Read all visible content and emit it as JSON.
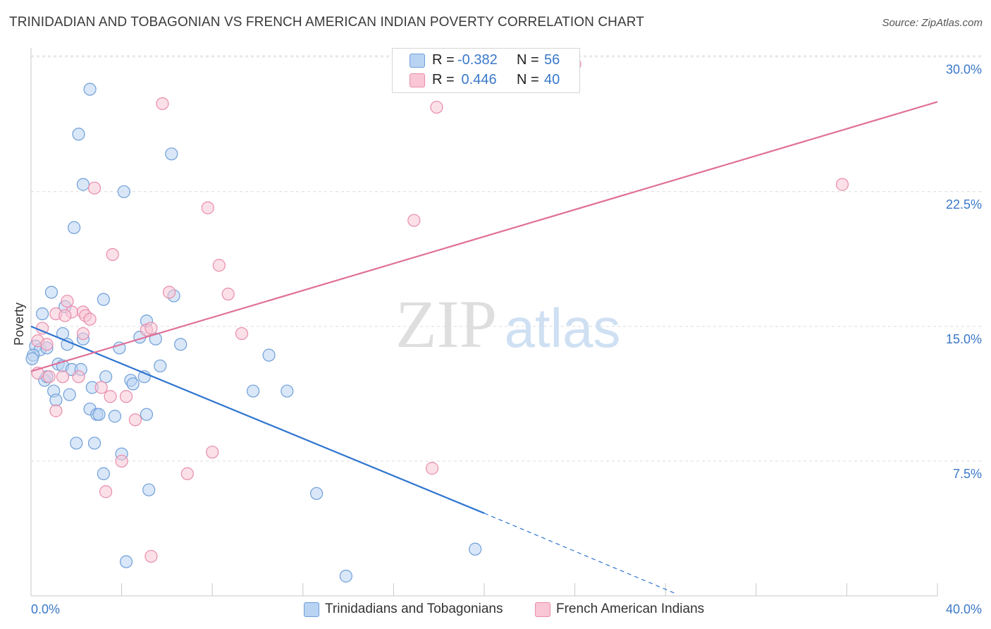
{
  "title": "TRINIDADIAN AND TOBAGONIAN VS FRENCH AMERICAN INDIAN POVERTY CORRELATION CHART",
  "source": "Source: ZipAtlas.com",
  "watermark": {
    "zip": "ZIP",
    "atlas": "atlas"
  },
  "legend": {
    "rows": [
      {
        "r_label": "R = ",
        "r_value": "-0.382",
        "n_label": "N = ",
        "n_value": "56"
      },
      {
        "r_label": "R = ",
        "r_value": " 0.446",
        "n_label": "N = ",
        "n_value": "40"
      }
    ]
  },
  "bottom_legend": [
    {
      "label": "Trinidadians and Tobagonians"
    },
    {
      "label": "French American Indians"
    }
  ],
  "colors": {
    "blue_fill": "#b9d3f3",
    "blue_stroke": "#6f9fd8",
    "blue_line": "#2e74d0",
    "pink_fill": "#f8c6d5",
    "pink_stroke": "#e98cab",
    "pink_line": "#e07099",
    "tick_label": "#3a78c9",
    "grid": "#dcdcdc"
  },
  "chart_data": {
    "type": "scatter",
    "title": "TRINIDADIAN AND TOBAGONIAN VS FRENCH AMERICAN INDIAN POVERTY CORRELATION CHART",
    "xlabel": "",
    "ylabel": "Poverty",
    "xlim": [
      0,
      40
    ],
    "ylim": [
      0,
      30.5
    ],
    "x_tick_labels": [
      "0.0%",
      "40.0%"
    ],
    "y_ticks": [
      7.5,
      15.0,
      22.5,
      30.0
    ],
    "y_tick_labels": [
      "7.5%",
      "15.0%",
      "22.5%",
      "30.0%"
    ],
    "grid": "horizontal dashed",
    "legend_position": "top-center",
    "series": [
      {
        "name": "Trinidadians and Tobagonians",
        "R": -0.382,
        "N": 56,
        "trend": {
          "x": [
            0,
            20
          ],
          "y": [
            15.0,
            4.6
          ],
          "dashed_extension_to": [
            28.5,
            0.1
          ]
        },
        "points": [
          [
            2.6,
            28.2
          ],
          [
            2.1,
            25.7
          ],
          [
            6.2,
            24.6
          ],
          [
            2.3,
            22.9
          ],
          [
            4.1,
            22.5
          ],
          [
            1.9,
            20.5
          ],
          [
            0.9,
            16.9
          ],
          [
            3.2,
            16.5
          ],
          [
            6.3,
            16.7
          ],
          [
            1.5,
            16.1
          ],
          [
            0.5,
            15.7
          ],
          [
            5.1,
            15.3
          ],
          [
            1.4,
            14.6
          ],
          [
            2.3,
            14.3
          ],
          [
            4.8,
            14.4
          ],
          [
            5.5,
            14.3
          ],
          [
            1.6,
            14.0
          ],
          [
            0.2,
            13.9
          ],
          [
            0.4,
            13.7
          ],
          [
            0.1,
            13.4
          ],
          [
            0.7,
            13.8
          ],
          [
            3.9,
            13.8
          ],
          [
            6.6,
            14.0
          ],
          [
            10.5,
            13.4
          ],
          [
            1.2,
            12.9
          ],
          [
            1.4,
            12.8
          ],
          [
            1.8,
            12.6
          ],
          [
            2.2,
            12.6
          ],
          [
            5.7,
            12.8
          ],
          [
            0.6,
            12.0
          ],
          [
            0.7,
            12.2
          ],
          [
            3.3,
            12.2
          ],
          [
            5.0,
            12.2
          ],
          [
            4.4,
            12.0
          ],
          [
            4.5,
            11.8
          ],
          [
            2.7,
            11.6
          ],
          [
            1.0,
            11.4
          ],
          [
            1.7,
            11.2
          ],
          [
            9.8,
            11.4
          ],
          [
            11.3,
            11.4
          ],
          [
            1.1,
            10.9
          ],
          [
            2.6,
            10.4
          ],
          [
            2.9,
            10.1
          ],
          [
            3.0,
            10.1
          ],
          [
            3.7,
            10.0
          ],
          [
            5.1,
            10.1
          ],
          [
            2.0,
            8.5
          ],
          [
            2.8,
            8.5
          ],
          [
            4.0,
            7.9
          ],
          [
            3.2,
            6.8
          ],
          [
            5.2,
            5.9
          ],
          [
            12.6,
            5.7
          ],
          [
            19.6,
            2.6
          ],
          [
            4.2,
            1.9
          ],
          [
            13.9,
            1.1
          ],
          [
            0.05,
            13.2
          ]
        ]
      },
      {
        "name": "French American Indians",
        "R": 0.446,
        "N": 40,
        "trend": {
          "x": [
            0,
            40
          ],
          "y": [
            12.5,
            27.5
          ]
        },
        "points": [
          [
            24.0,
            29.6
          ],
          [
            5.8,
            27.4
          ],
          [
            17.9,
            27.2
          ],
          [
            35.8,
            22.9
          ],
          [
            2.8,
            22.7
          ],
          [
            7.8,
            21.6
          ],
          [
            16.9,
            20.9
          ],
          [
            3.6,
            19.0
          ],
          [
            8.3,
            18.4
          ],
          [
            6.1,
            16.9
          ],
          [
            8.7,
            16.8
          ],
          [
            1.6,
            16.4
          ],
          [
            1.1,
            15.7
          ],
          [
            1.8,
            15.8
          ],
          [
            2.3,
            15.8
          ],
          [
            1.5,
            15.6
          ],
          [
            2.4,
            15.6
          ],
          [
            2.6,
            15.4
          ],
          [
            0.5,
            14.9
          ],
          [
            5.1,
            14.8
          ],
          [
            5.3,
            14.9
          ],
          [
            9.3,
            14.6
          ],
          [
            2.3,
            14.6
          ],
          [
            0.3,
            14.2
          ],
          [
            0.7,
            14.0
          ],
          [
            0.3,
            12.4
          ],
          [
            0.8,
            12.2
          ],
          [
            1.4,
            12.2
          ],
          [
            2.1,
            12.2
          ],
          [
            3.1,
            11.6
          ],
          [
            3.5,
            11.1
          ],
          [
            4.2,
            11.1
          ],
          [
            1.1,
            10.3
          ],
          [
            4.6,
            9.8
          ],
          [
            8.0,
            8.0
          ],
          [
            4.0,
            7.5
          ],
          [
            17.7,
            7.1
          ],
          [
            6.9,
            6.8
          ],
          [
            3.3,
            5.8
          ],
          [
            5.3,
            2.2
          ]
        ]
      }
    ]
  }
}
